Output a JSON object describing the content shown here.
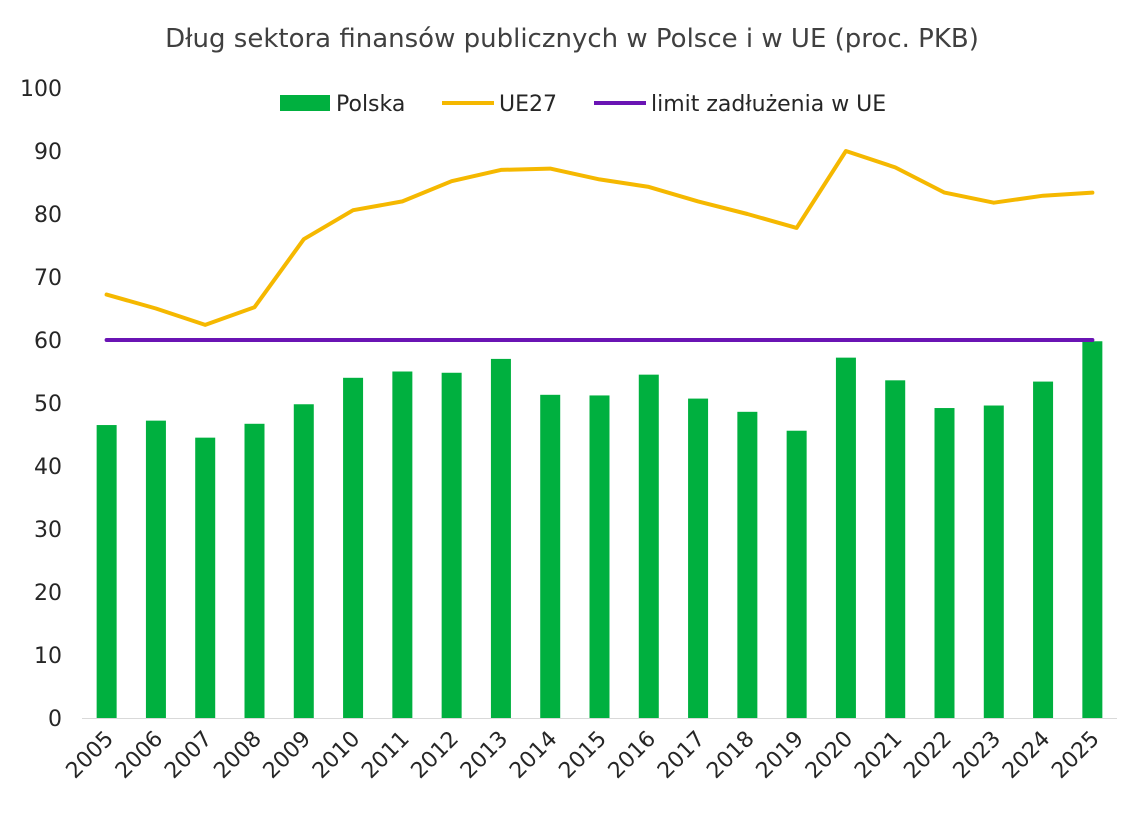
{
  "chart_data": {
    "type": "bar",
    "title": "Dług sektora finansów publicznych w Polsce i w UE (proc. PKB)",
    "xlabel": "",
    "ylabel": "",
    "ylim": [
      0,
      100
    ],
    "yticks": [
      0,
      10,
      20,
      30,
      40,
      50,
      60,
      70,
      80,
      90,
      100
    ],
    "grid": false,
    "legend_position": "top",
    "categories": [
      "2005",
      "2006",
      "2007",
      "2008",
      "2009",
      "2010",
      "2011",
      "2012",
      "2013",
      "2014",
      "2015",
      "2016",
      "2017",
      "2018",
      "2019",
      "2020",
      "2021",
      "2022",
      "2023",
      "2024",
      "2025"
    ],
    "series": [
      {
        "name": "Polska",
        "type": "bar",
        "color": "#00b03f",
        "values": [
          46.5,
          47.2,
          44.5,
          46.7,
          49.8,
          54.0,
          55.0,
          54.8,
          57.0,
          51.3,
          51.2,
          54.5,
          50.7,
          48.6,
          45.6,
          57.2,
          53.6,
          49.2,
          49.6,
          53.4,
          59.8
        ]
      },
      {
        "name": "UE27",
        "type": "line",
        "color": "#f5b800",
        "values": [
          67.2,
          65.0,
          62.4,
          65.2,
          76.0,
          80.6,
          82.0,
          85.2,
          87.0,
          87.2,
          85.5,
          84.3,
          82.0,
          80.0,
          77.8,
          90.0,
          87.4,
          83.4,
          81.8,
          82.9,
          83.4
        ]
      },
      {
        "name": "limit zadłużenia w UE",
        "type": "line",
        "color": "#6a14b4",
        "values": [
          60,
          60,
          60,
          60,
          60,
          60,
          60,
          60,
          60,
          60,
          60,
          60,
          60,
          60,
          60,
          60,
          60,
          60,
          60,
          60,
          60
        ]
      }
    ]
  }
}
